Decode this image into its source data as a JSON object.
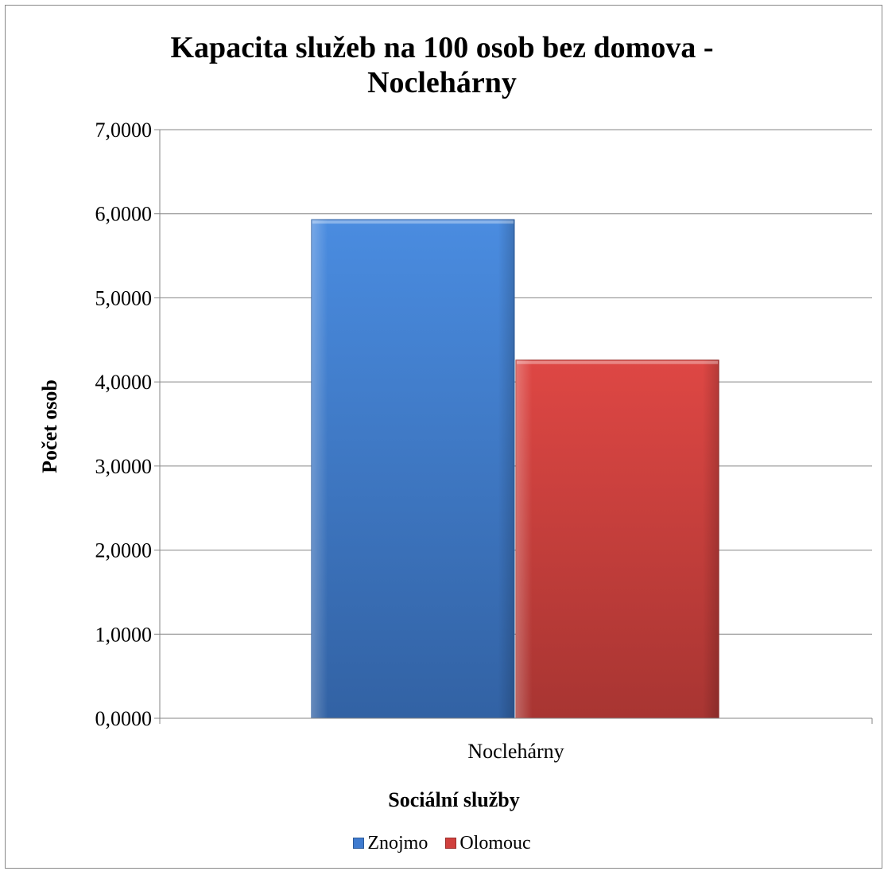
{
  "chart_data": {
    "type": "bar",
    "title_line1": "Kapacita služeb na 100 osob bez domova -",
    "title_line2": "Noclehárny",
    "xlabel": "Sociální služby",
    "ylabel": "Počet osob",
    "categories": [
      "Noclehárny"
    ],
    "ylim": [
      0,
      7
    ],
    "yticks": [
      "0,0000",
      "1,0000",
      "2,0000",
      "3,0000",
      "4,0000",
      "5,0000",
      "6,0000",
      "7,0000"
    ],
    "series": [
      {
        "name": "Znojmo",
        "values": [
          5.93
        ],
        "color": "#4a86d8"
      },
      {
        "name": "Olomouc",
        "values": [
          4.26
        ],
        "color": "#d64541"
      }
    ],
    "grid": true,
    "legend": "bottom"
  }
}
